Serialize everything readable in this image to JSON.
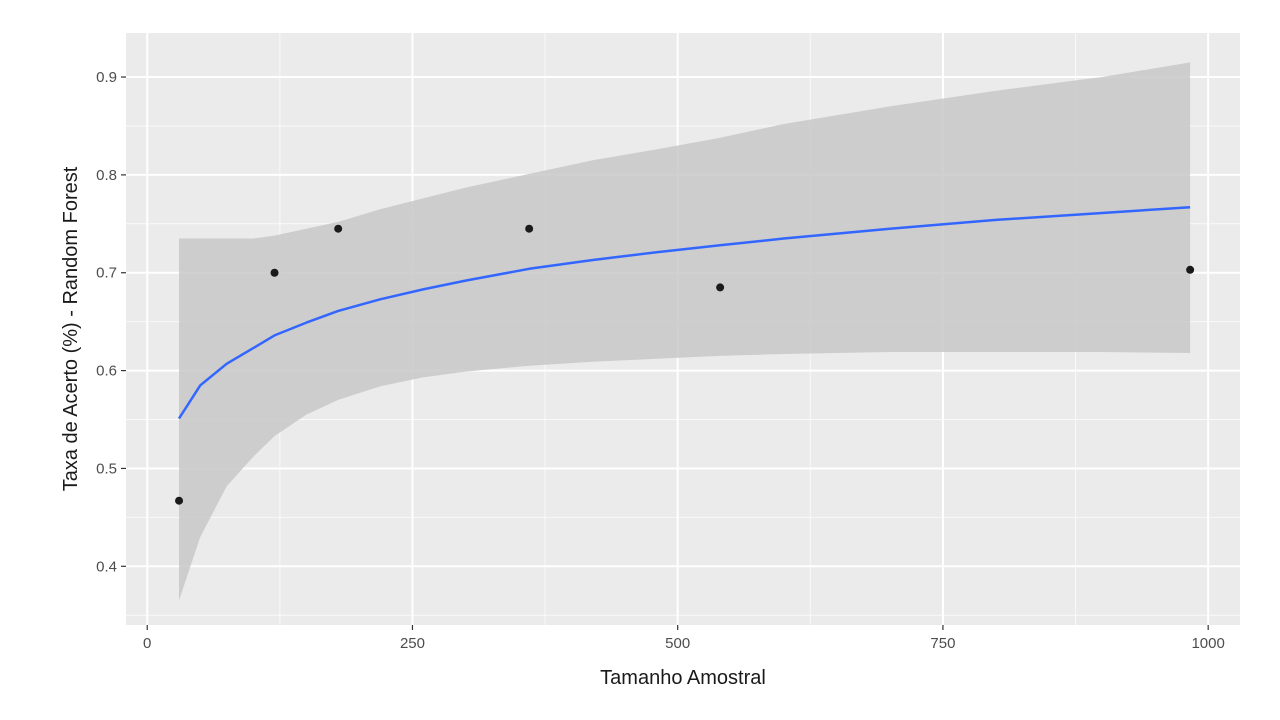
{
  "chart_data": {
    "type": "scatter",
    "xlabel": "Tamanho Amostral",
    "ylabel": "Taxa de Acerto (%) - Random Forest",
    "xlim": [
      -20,
      1030
    ],
    "ylim": [
      0.34,
      0.945
    ],
    "x_ticks": [
      0,
      250,
      500,
      750,
      1000
    ],
    "x_tick_labels": [
      "0",
      "250",
      "500",
      "750",
      "1000"
    ],
    "y_ticks": [
      0.4,
      0.5,
      0.6,
      0.7,
      0.8,
      0.9
    ],
    "y_tick_labels": [
      "0.4",
      "0.5",
      "0.6",
      "0.7",
      "0.8",
      "0.9"
    ],
    "grid": true,
    "points": [
      {
        "x": 30,
        "y": 0.467
      },
      {
        "x": 120,
        "y": 0.7
      },
      {
        "x": 180,
        "y": 0.745
      },
      {
        "x": 360,
        "y": 0.745
      },
      {
        "x": 540,
        "y": 0.685
      },
      {
        "x": 983,
        "y": 0.703
      }
    ],
    "smooth": {
      "x": [
        30,
        50,
        75,
        100,
        120,
        150,
        180,
        220,
        260,
        300,
        360,
        420,
        480,
        540,
        600,
        700,
        800,
        900,
        983
      ],
      "y": [
        0.551,
        0.585,
        0.607,
        0.623,
        0.636,
        0.649,
        0.661,
        0.673,
        0.683,
        0.692,
        0.704,
        0.713,
        0.721,
        0.728,
        0.735,
        0.745,
        0.754,
        0.761,
        0.767
      ],
      "ci_upper": [
        0.735,
        0.735,
        0.735,
        0.735,
        0.738,
        0.745,
        0.752,
        0.765,
        0.776,
        0.787,
        0.801,
        0.815,
        0.826,
        0.838,
        0.852,
        0.87,
        0.886,
        0.9,
        0.915
      ],
      "ci_lower": [
        0.365,
        0.43,
        0.482,
        0.512,
        0.533,
        0.555,
        0.57,
        0.584,
        0.593,
        0.599,
        0.605,
        0.609,
        0.612,
        0.615,
        0.617,
        0.619,
        0.619,
        0.619,
        0.618
      ]
    },
    "colors": {
      "panel": "#ebebeb",
      "grid": "#ffffff",
      "ribbon": "#c8c8c8",
      "line": "#3366ff",
      "point": "#1a1a1a",
      "tick": "#333333"
    }
  }
}
